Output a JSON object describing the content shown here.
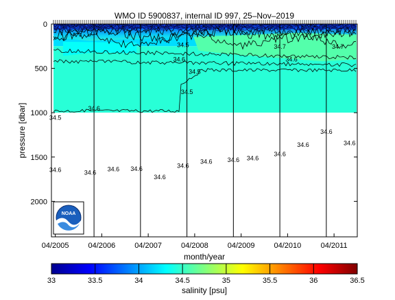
{
  "chart_data": [
    {
      "type": "heatmap",
      "title": "WMO ID 5900837, internal ID 997, 25–Nov–2019",
      "xlabel": "month/year",
      "ylabel": "pressure [dbar]",
      "x_ticks": [
        "04/2005",
        "04/2006",
        "04/2007",
        "04/2008",
        "04/2009",
        "04/2010",
        "04/2011"
      ],
      "x_range": [
        "2005-03",
        "2011-10"
      ],
      "y_ticks": [
        0,
        500,
        1000,
        1500,
        2000
      ],
      "ylim": [
        2400,
        0
      ],
      "y_reversed": true,
      "data_max_pressure": 1000,
      "fill_description_levels": [
        {
          "pressure_top": 0,
          "pressure_bottom": 60,
          "salinity": 33.6
        },
        {
          "pressure_top": 60,
          "pressure_bottom": 250,
          "salinity": 34.2
        },
        {
          "pressure_top": 250,
          "pressure_bottom": 1000,
          "salinity": 34.45
        }
      ],
      "profile_separators": [
        "2006-02",
        "2007-02",
        "2008-02",
        "2009-02",
        "2010-02",
        "2011-02"
      ],
      "contour_labels": [
        {
          "text": "34.5",
          "date": "2005-04",
          "pressure": 1080
        },
        {
          "text": "34.6",
          "date": "2006-02",
          "pressure": 975
        },
        {
          "text": "34.6",
          "date": "2007-12",
          "pressure": 420
        },
        {
          "text": "34.5",
          "date": "2008-01",
          "pressure": 260
        },
        {
          "text": "34.5",
          "date": "2008-04",
          "pressure": 560
        },
        {
          "text": "34.5",
          "date": "2008-02",
          "pressure": 790
        },
        {
          "text": "34.7",
          "date": "2010-02",
          "pressure": 280
        },
        {
          "text": "34.6",
          "date": "2010-05",
          "pressure": 420
        },
        {
          "text": "34.7",
          "date": "2011-05",
          "pressure": 280
        },
        {
          "text": "34.6",
          "date": "2005-04",
          "pressure": 1670
        },
        {
          "text": "34.6",
          "date": "2006-01",
          "pressure": 1700
        },
        {
          "text": "34.6",
          "date": "2006-07",
          "pressure": 1660
        },
        {
          "text": "34.6",
          "date": "2007-01",
          "pressure": 1655
        },
        {
          "text": "34.6",
          "date": "2007-07",
          "pressure": 1750
        },
        {
          "text": "34.6",
          "date": "2008-01",
          "pressure": 1620
        },
        {
          "text": "34.6",
          "date": "2008-07",
          "pressure": 1575
        },
        {
          "text": "34.6",
          "date": "2009-02",
          "pressure": 1555
        },
        {
          "text": "34.6",
          "date": "2009-07",
          "pressure": 1535
        },
        {
          "text": "34.6",
          "date": "2010-02",
          "pressure": 1490
        },
        {
          "text": "34.6",
          "date": "2010-08",
          "pressure": 1385
        },
        {
          "text": "34.6",
          "date": "2011-02",
          "pressure": 1240
        },
        {
          "text": "34.6",
          "date": "2011-08",
          "pressure": 1365
        }
      ],
      "logo_text": "NOAA"
    },
    {
      "type": "colorbar",
      "xlabel": "salinity [psu]",
      "range": [
        33,
        36.5
      ],
      "ticks": [
        "33",
        "33.5",
        "34",
        "34.5",
        "35",
        "35.5",
        "36",
        "36.5"
      ],
      "colormap": "jet"
    }
  ]
}
